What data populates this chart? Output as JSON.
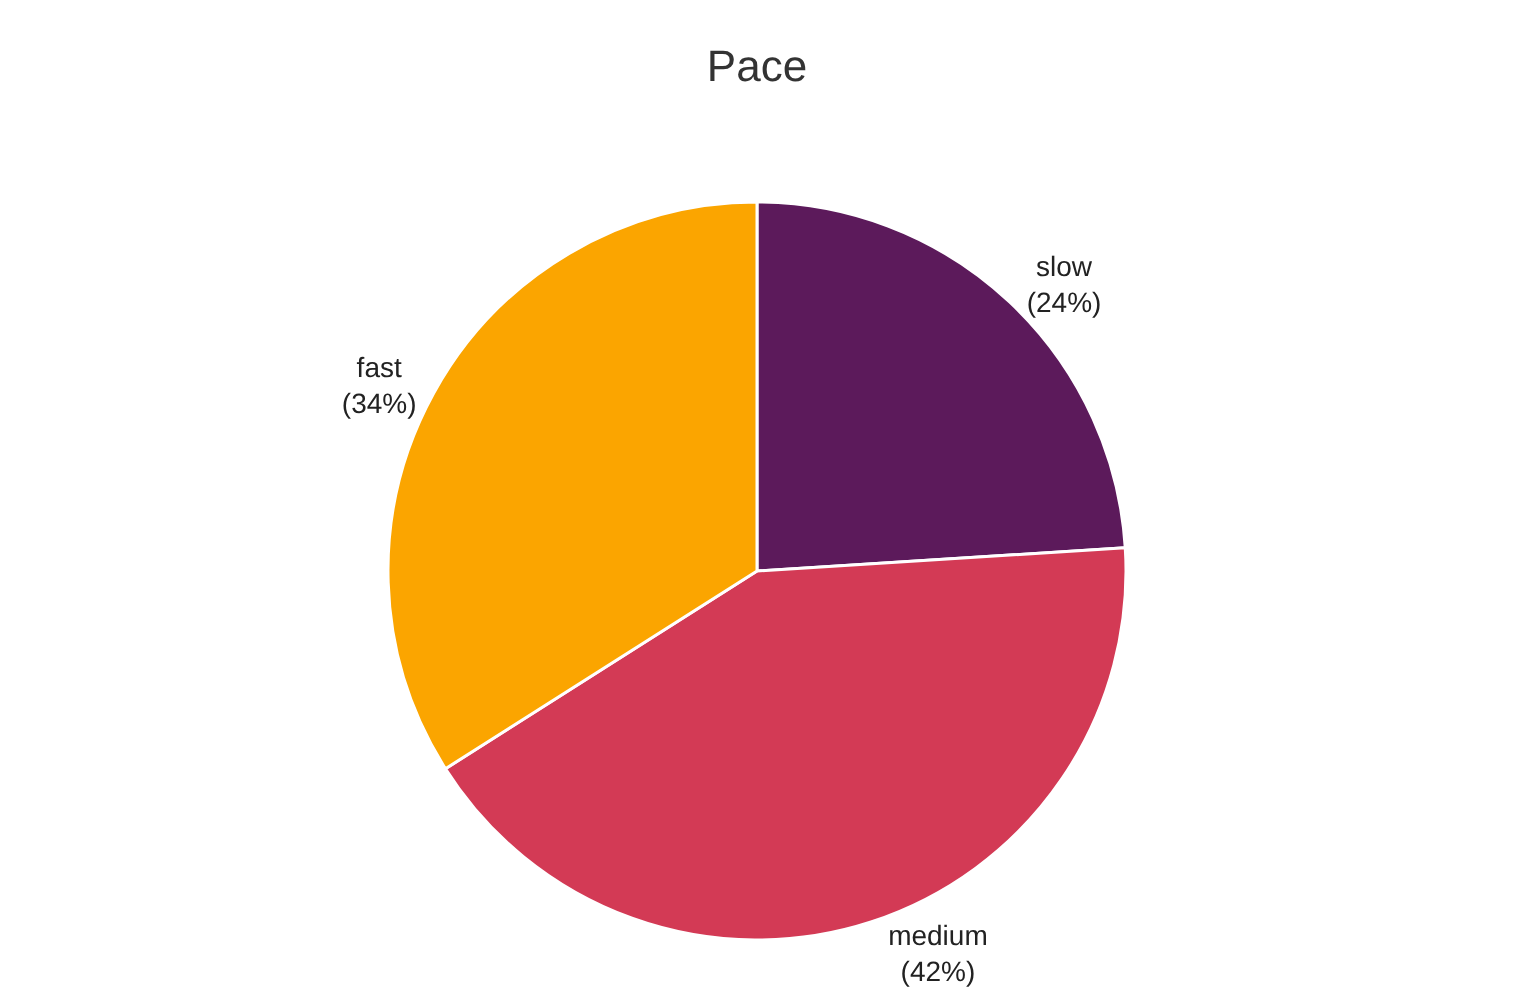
{
  "chart_data": {
    "type": "pie",
    "title": "Pace",
    "categories": [
      "slow",
      "medium",
      "fast"
    ],
    "values": [
      24,
      42,
      34
    ],
    "value_labels": [
      "(24%)",
      "(42%)",
      "(34%)"
    ],
    "colors": [
      "#5c1a5b",
      "#d33a55",
      "#fba500"
    ],
    "legend": false
  }
}
